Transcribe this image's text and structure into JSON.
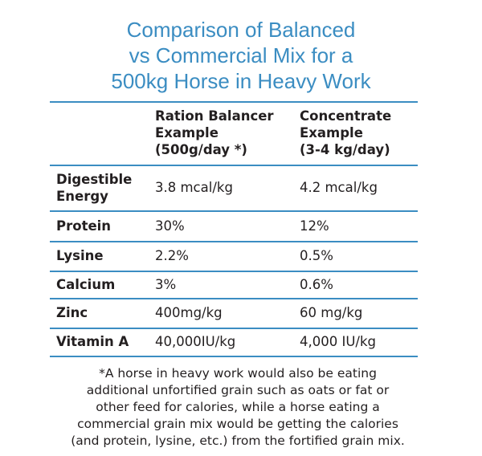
{
  "title": [
    "Comparison of Balanced",
    "vs Commercial Mix for a",
    "500kg Horse in Heavy Work"
  ],
  "table": {
    "header": [
      [
        "Ration Balancer",
        "Example",
        "(500g/day *)"
      ],
      [
        "Concentrate",
        "Example",
        "(3-4 kg/day)"
      ]
    ],
    "rows": [
      [
        "Digestible Energy",
        "3.8 mcal/kg",
        "4.2 mcal/kg"
      ],
      [
        "Protein",
        "30%",
        "12%"
      ],
      [
        "Lysine",
        "2.2%",
        "0.5%"
      ],
      [
        "Calcium",
        "3%",
        "0.6%"
      ],
      [
        "Zinc",
        "400mg/kg",
        "60 mg/kg"
      ],
      [
        "Vitamin A",
        "40,000IU/kg",
        "4,000 IU/kg"
      ]
    ]
  },
  "footnote": [
    "*A horse in heavy work would also be eating",
    "additional unfortified grain such as oats or fat or",
    "other feed for calories, while a horse eating a",
    "commercial grain mix would be getting the calories",
    "(and protein, lysine, etc.) from the fortified grain mix."
  ]
}
